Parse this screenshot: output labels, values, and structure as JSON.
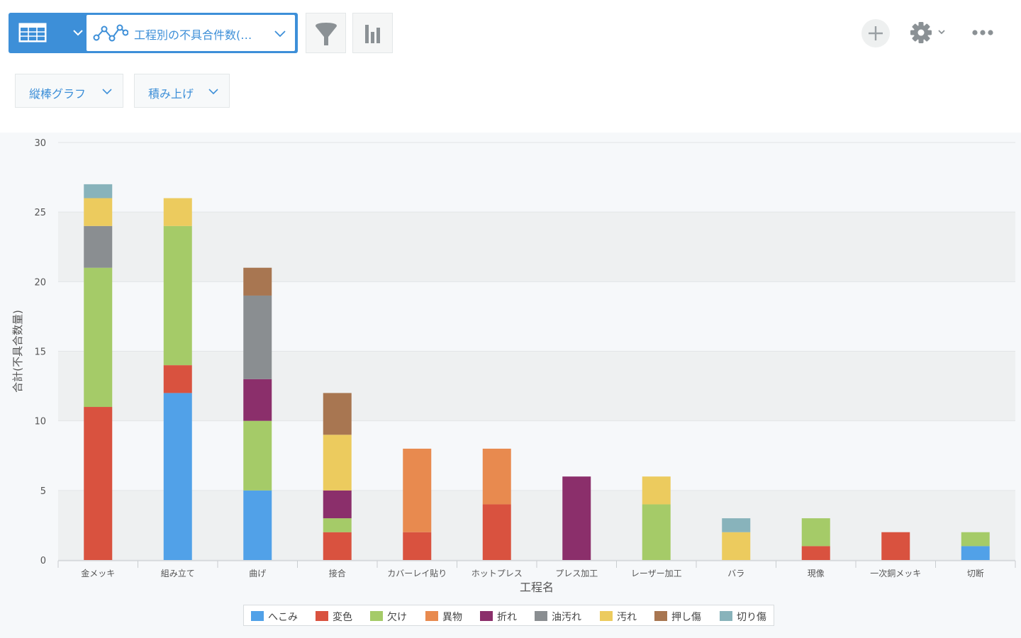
{
  "toolbar": {
    "table_icon": "table-icon",
    "graph_icon": "line-graph-icon",
    "view_name": "工程別の不具合件数(…",
    "filter_icon": "funnel-icon",
    "chart_icon": "bar-chart-icon",
    "add_icon": "plus-icon",
    "settings_icon": "gear-icon",
    "more_icon": "ellipsis-icon",
    "accent": "#3d8fd8"
  },
  "options": {
    "chart_type_label": "縦棒グラフ",
    "stack_mode_label": "積み上げ"
  },
  "chart_data": {
    "type": "bar",
    "stacked": true,
    "xlabel": "工程名",
    "ylabel": "合計(不具合数量)",
    "ylim": [
      0,
      30
    ],
    "yticks": [
      0,
      5,
      10,
      15,
      20,
      25,
      30
    ],
    "grid": true,
    "legend_position": "bottom",
    "categories": [
      "金メッキ",
      "組み立て",
      "曲げ",
      "接合",
      "カバーレイ貼り",
      "ホットプレス",
      "プレス加工",
      "レーザー加工",
      "バラ",
      "現像",
      "一次銅メッキ",
      "切断"
    ],
    "series": [
      {
        "name": "へこみ",
        "color": "#51a1e8",
        "values": [
          0,
          12,
          5,
          0,
          0,
          0,
          0,
          0,
          0,
          0,
          0,
          1
        ]
      },
      {
        "name": "変色",
        "color": "#d9523f",
        "values": [
          11,
          2,
          0,
          2,
          2,
          4,
          0,
          0,
          0,
          1,
          2,
          0
        ]
      },
      {
        "name": "欠け",
        "color": "#a5cb68",
        "values": [
          10,
          10,
          5,
          1,
          0,
          0,
          0,
          4,
          0,
          2,
          0,
          1
        ]
      },
      {
        "name": "異物",
        "color": "#e88a4f",
        "values": [
          0,
          0,
          0,
          0,
          6,
          4,
          0,
          0,
          0,
          0,
          0,
          0
        ]
      },
      {
        "name": "折れ",
        "color": "#8b2f6b",
        "values": [
          0,
          0,
          3,
          2,
          0,
          0,
          6,
          0,
          0,
          0,
          0,
          0
        ]
      },
      {
        "name": "油汚れ",
        "color": "#8a8e91",
        "values": [
          3,
          0,
          6,
          0,
          0,
          0,
          0,
          0,
          0,
          0,
          0,
          0
        ]
      },
      {
        "name": "汚れ",
        "color": "#eccb5e",
        "values": [
          2,
          2,
          0,
          4,
          0,
          0,
          0,
          2,
          2,
          0,
          0,
          0
        ]
      },
      {
        "name": "押し傷",
        "color": "#a87651",
        "values": [
          0,
          0,
          2,
          3,
          0,
          0,
          0,
          0,
          0,
          0,
          0,
          0
        ]
      },
      {
        "name": "切り傷",
        "color": "#88b3bb",
        "values": [
          1,
          0,
          0,
          0,
          0,
          0,
          0,
          0,
          1,
          0,
          0,
          0
        ]
      }
    ]
  }
}
